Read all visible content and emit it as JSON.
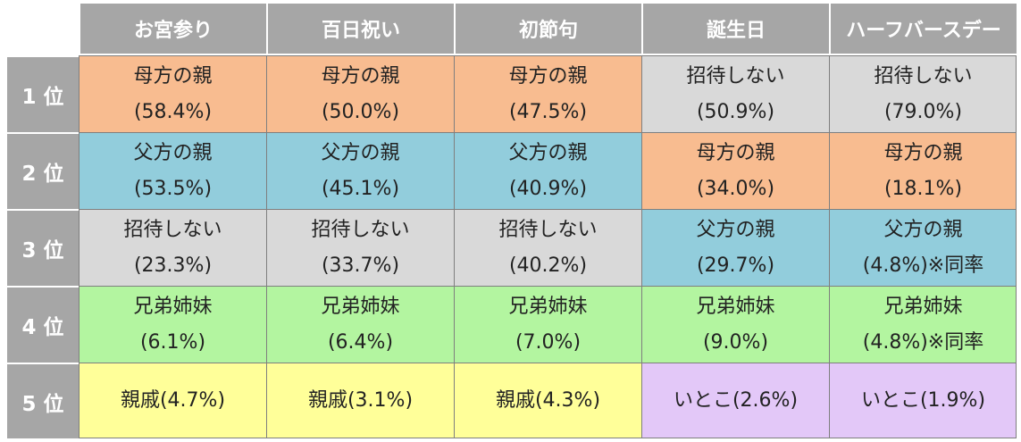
{
  "headers": [
    "お宮参り",
    "百日祝い",
    "初節句",
    "誕生日",
    "ハーフバースデー"
  ],
  "rows": [
    {
      "rank": "1 位",
      "cells": [
        {
          "name": "母方の親",
          "pct": "(58.4%)",
          "color": "orange"
        },
        {
          "name": "母方の親",
          "pct": "(50.0%)",
          "color": "orange"
        },
        {
          "name": "母方の親",
          "pct": "(47.5%)",
          "color": "orange"
        },
        {
          "name": "招待しない",
          "pct": "(50.9%)",
          "color": "gray"
        },
        {
          "name": "招待しない",
          "pct": "(79.0%)",
          "color": "gray"
        }
      ]
    },
    {
      "rank": "2 位",
      "cells": [
        {
          "name": "父方の親",
          "pct": "(53.5%)",
          "color": "blue"
        },
        {
          "name": "父方の親",
          "pct": "(45.1%)",
          "color": "blue"
        },
        {
          "name": "父方の親",
          "pct": "(40.9%)",
          "color": "blue"
        },
        {
          "name": "母方の親",
          "pct": "(34.0%)",
          "color": "orange"
        },
        {
          "name": "母方の親",
          "pct": "(18.1%)",
          "color": "orange"
        }
      ]
    },
    {
      "rank": "3 位",
      "cells": [
        {
          "name": "招待しない",
          "pct": "(23.3%)",
          "color": "gray"
        },
        {
          "name": "招待しない",
          "pct": "(33.7%)",
          "color": "gray"
        },
        {
          "name": "招待しない",
          "pct": "(40.2%)",
          "color": "gray"
        },
        {
          "name": "父方の親",
          "pct": "(29.7%)",
          "color": "blue"
        },
        {
          "name": "父方の親",
          "pct": "(4.8%)※同率",
          "color": "blue"
        }
      ]
    },
    {
      "rank": "4 位",
      "cells": [
        {
          "name": "兄弟姉妹",
          "pct": "(6.1%)",
          "color": "green"
        },
        {
          "name": "兄弟姉妹",
          "pct": "(6.4%)",
          "color": "green"
        },
        {
          "name": "兄弟姉妹",
          "pct": "(7.0%)",
          "color": "green"
        },
        {
          "name": "兄弟姉妹",
          "pct": "(9.0%)",
          "color": "green"
        },
        {
          "name": "兄弟姉妹",
          "pct": "(4.8%)※同率",
          "color": "green"
        }
      ]
    },
    {
      "rank": "5 位",
      "cells": [
        {
          "name": "親戚(4.7%)",
          "pct": "",
          "color": "yellow"
        },
        {
          "name": "親戚(3.1%)",
          "pct": "",
          "color": "yellow"
        },
        {
          "name": "親戚(4.3%)",
          "pct": "",
          "color": "yellow"
        },
        {
          "name": "いとこ(2.6%)",
          "pct": "",
          "color": "purple"
        },
        {
          "name": "いとこ(1.9%)",
          "pct": "",
          "color": "purple"
        }
      ]
    }
  ],
  "colors": {
    "orange": "#f8bc90",
    "blue": "#92cddc",
    "gray": "#d9d9d9",
    "green": "#b3f5a0",
    "yellow": "#ffff99",
    "purple": "#e3c8f8",
    "header": "#a6a6a6"
  }
}
